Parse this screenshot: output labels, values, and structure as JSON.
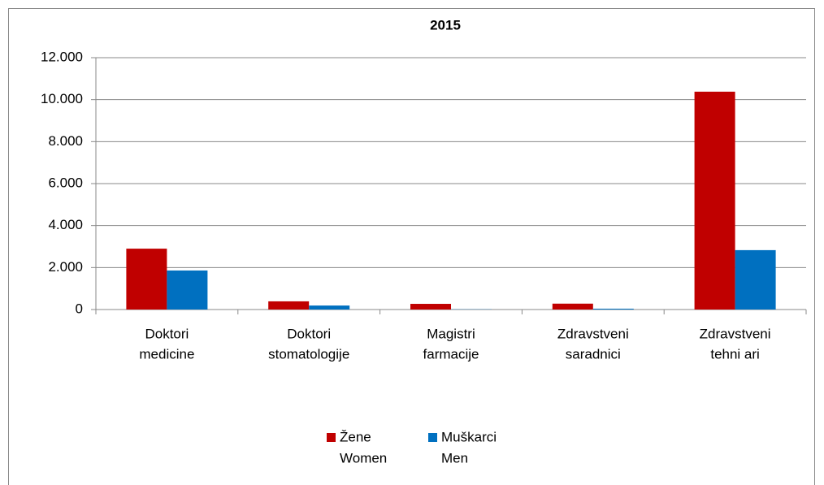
{
  "chart_data": {
    "type": "bar",
    "title": "2015",
    "categories": [
      [
        "Doktori",
        "medicine"
      ],
      [
        "Doktori",
        "stomatologije"
      ],
      [
        "Magistri",
        "farmacije"
      ],
      [
        "Zdravstveni",
        "saradnici"
      ],
      [
        "Zdravstveni",
        "tehni ari"
      ]
    ],
    "series": [
      {
        "name": [
          "Žene",
          "Women"
        ],
        "color": "#c00000",
        "values": [
          2900,
          390,
          270,
          280,
          10380
        ]
      },
      {
        "name": [
          "Muškarci",
          "Men"
        ],
        "color": "#0070c0",
        "values": [
          1860,
          190,
          10,
          40,
          2830
        ]
      }
    ],
    "ylim": [
      0,
      12000
    ],
    "yticks": [
      0,
      {
        "value": 2000,
        "label": "2.000"
      },
      {
        "value": 4000,
        "label": "4.000"
      },
      {
        "value": 6000,
        "label": "6.000"
      },
      {
        "value": 8000,
        "label": "8.000"
      },
      {
        "value": 10000,
        "label": "10.000"
      },
      {
        "value": 12000,
        "label": "12.000"
      }
    ],
    "grid": true,
    "legend": "bottom"
  }
}
